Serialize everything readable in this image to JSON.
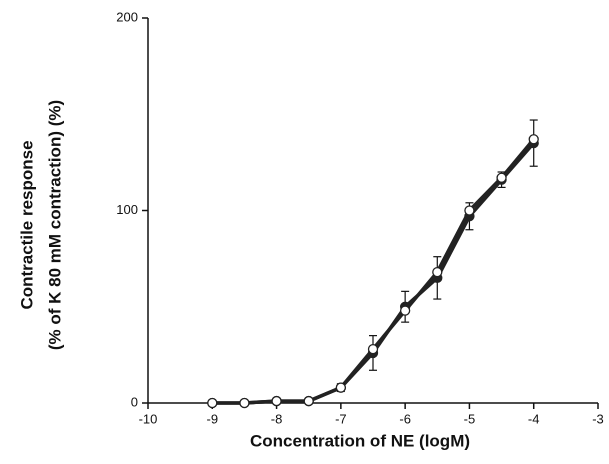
{
  "chart_data": {
    "type": "line",
    "x_label": "Concentration of NE (logM)",
    "y_label_lines": [
      "Contractile response",
      "(% of  K 80 mM contraction)  (%)"
    ],
    "x": [
      -9,
      -8.5,
      -8,
      -7.5,
      -7,
      -6.5,
      -6,
      -5.5,
      -5,
      -4.5,
      -4
    ],
    "series": [
      {
        "marker": "filled",
        "color": "#222222",
        "values": [
          0,
          0,
          1,
          1,
          8,
          26,
          50,
          65,
          97,
          116,
          135
        ],
        "errors": [
          0,
          0,
          0,
          0,
          2,
          9,
          8,
          11,
          7,
          4,
          12
        ]
      },
      {
        "marker": "open",
        "color": "#222222",
        "values": [
          0,
          0,
          1,
          1,
          8,
          28,
          48,
          68,
          100,
          117,
          137
        ]
      }
    ],
    "xlim": [
      -10,
      -3
    ],
    "xticks": [
      -10,
      -9,
      -8,
      -7,
      -6,
      -5,
      -4,
      -3
    ],
    "ylim": [
      0,
      200
    ],
    "yticks": [
      0,
      100,
      200
    ]
  }
}
